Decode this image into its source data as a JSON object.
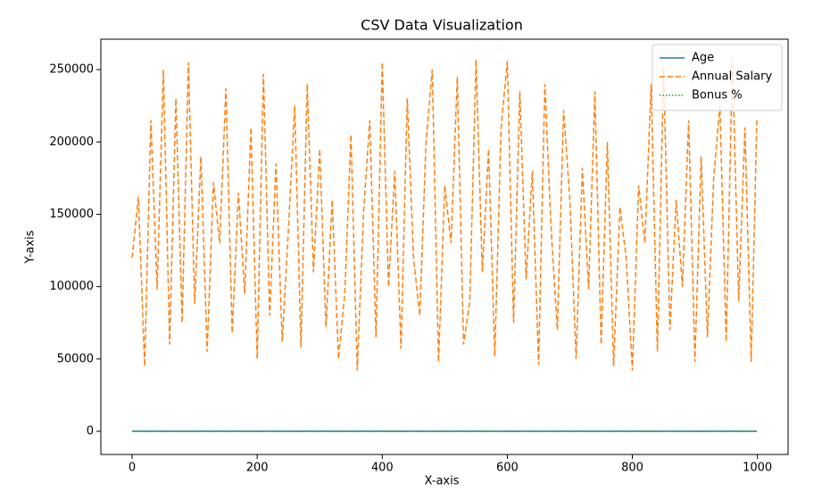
{
  "chart_data": {
    "type": "line",
    "title": "CSV Data Visualization",
    "x_label": "X-axis",
    "y_label": "Y-axis",
    "x": [
      0,
      10,
      20,
      30,
      40,
      50,
      60,
      70,
      80,
      90,
      100,
      110,
      120,
      130,
      140,
      150,
      160,
      170,
      180,
      190,
      200,
      210,
      220,
      230,
      240,
      250,
      260,
      270,
      280,
      290,
      300,
      310,
      320,
      330,
      340,
      350,
      360,
      370,
      380,
      390,
      400,
      410,
      420,
      430,
      440,
      450,
      460,
      470,
      480,
      490,
      500,
      510,
      520,
      530,
      540,
      550,
      560,
      570,
      580,
      590,
      600,
      610,
      620,
      630,
      640,
      650,
      660,
      670,
      680,
      690,
      700,
      710,
      720,
      730,
      740,
      750,
      760,
      770,
      780,
      790,
      800,
      810,
      820,
      830,
      840,
      850,
      860,
      870,
      880,
      890,
      900,
      910,
      920,
      930,
      940,
      950,
      960,
      970,
      980,
      990,
      999
    ],
    "series": [
      {
        "name": "Age",
        "color": "#1f77b4",
        "linestyle": "solid",
        "values": [
          34,
          52,
          27,
          45,
          61,
          38,
          29,
          57,
          43,
          25,
          48,
          63,
          31,
          40,
          55,
          22,
          47,
          59,
          36,
          28,
          50,
          44,
          62,
          33,
          26,
          58,
          41,
          37,
          54,
          24,
          46,
          60,
          32,
          39,
          53,
          23,
          49,
          64,
          35,
          30,
          56,
          42,
          27,
          51,
          45,
          61,
          38,
          29,
          57,
          43,
          25,
          48,
          63,
          31,
          40,
          55,
          22,
          47,
          59,
          36,
          28,
          50,
          44,
          62,
          33,
          26,
          58,
          41,
          37,
          54,
          24,
          46,
          60,
          32,
          39,
          53,
          23,
          49,
          64,
          35,
          30,
          56,
          42,
          27,
          51,
          45,
          61,
          38,
          29,
          57,
          43,
          25,
          48,
          63,
          31,
          40,
          55,
          22,
          47,
          59,
          36
        ]
      },
      {
        "name": "Annual Salary",
        "color": "#ff7f0e",
        "linestyle": "dashed",
        "values": [
          120000,
          162000,
          45000,
          215000,
          98000,
          250000,
          60000,
          230000,
          75000,
          255000,
          88000,
          190000,
          55000,
          172000,
          130000,
          237000,
          68000,
          165000,
          95000,
          210000,
          50000,
          247000,
          80000,
          185000,
          62000,
          140000,
          225000,
          58000,
          240000,
          110000,
          195000,
          72000,
          160000,
          50000,
          95000,
          205000,
          42000,
          150000,
          215000,
          65000,
          255000,
          100000,
          180000,
          57000,
          230000,
          120000,
          80000,
          200000,
          250000,
          48000,
          170000,
          130000,
          245000,
          60000,
          90000,
          257000,
          110000,
          195000,
          52000,
          210000,
          256000,
          75000,
          235000,
          105000,
          180000,
          46000,
          240000,
          140000,
          70000,
          222000,
          160000,
          50000,
          182000,
          98000,
          235000,
          60000,
          200000,
          45000,
          155000,
          120000,
          42000,
          170000,
          130000,
          240000,
          55000,
          252000,
          70000,
          160000,
          100000,
          215000,
          48000,
          190000,
          65000,
          175000,
          225000,
          62000,
          258000,
          90000,
          210000,
          48000,
          215000
        ]
      },
      {
        "name": "Bonus %",
        "color": "#2ca02c",
        "linestyle": "dotted",
        "values": [
          12,
          8,
          17,
          5,
          14,
          19,
          10,
          7,
          16,
          11,
          6,
          18,
          13,
          9,
          15,
          20,
          7,
          12,
          17,
          8,
          14,
          5,
          19,
          11,
          16,
          9,
          13,
          6,
          18,
          10,
          15,
          7,
          20,
          12,
          8,
          17,
          11,
          14,
          6,
          19,
          9,
          16,
          13,
          5,
          18,
          10,
          15,
          8,
          12,
          20,
          7,
          17,
          11,
          14,
          6,
          19,
          9,
          16,
          13,
          5,
          18,
          10,
          15,
          8,
          12,
          20,
          7,
          17,
          11,
          14,
          6,
          19,
          9,
          16,
          13,
          5,
          18,
          10,
          15,
          8,
          12,
          20,
          7,
          17,
          11,
          14,
          6,
          19,
          9,
          16,
          13,
          5,
          18,
          10,
          15,
          8,
          12,
          20,
          7,
          17,
          11
        ]
      }
    ],
    "xlim": [
      -50,
      1049
    ],
    "xticks": [
      0,
      200,
      400,
      600,
      800,
      1000
    ],
    "ylim": [
      -16000,
      271000
    ],
    "yticks": [
      0,
      50000,
      100000,
      150000,
      200000,
      250000
    ],
    "legend": "upper right"
  }
}
